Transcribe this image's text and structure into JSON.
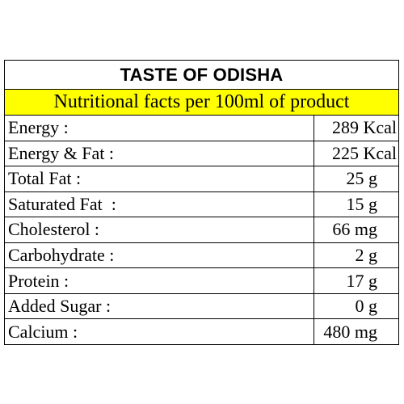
{
  "label": {
    "title": "TASTE OF ODISHA",
    "subtitle": "Nutritional facts per 100ml of product",
    "accent_color": "#ffff00",
    "rows": [
      {
        "nutrient": "Energy :",
        "amount": "289 Kcal"
      },
      {
        "nutrient": "Energy & Fat :",
        "amount": "225 Kcal"
      },
      {
        "nutrient": "Total Fat :",
        "amount": "25 g"
      },
      {
        "nutrient": "Saturated Fat  :",
        "amount": "15 g"
      },
      {
        "nutrient": "Cholesterol :",
        "amount": "66 mg"
      },
      {
        "nutrient": "Carbohydrate :",
        "amount": "2 g"
      },
      {
        "nutrient": "Protein :",
        "amount": "17 g"
      },
      {
        "nutrient": "Added Sugar :",
        "amount": "0 g"
      },
      {
        "nutrient": "Calcium :",
        "amount": "480 mg"
      }
    ]
  }
}
